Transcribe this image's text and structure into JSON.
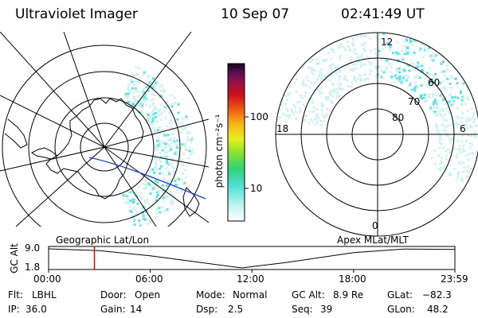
{
  "header": {
    "instrument": "Ultraviolet Imager",
    "date": "10 Sep 07",
    "time": "02:41:49 UT"
  },
  "colorbar": {
    "label": "photon cm⁻²s⁻¹",
    "ticks": [
      "100",
      "10"
    ]
  },
  "polar_plot": {
    "mlt_labels": {
      "top": "12",
      "left": "18",
      "right": "6",
      "bottom": "0"
    },
    "lat_labels": [
      "60",
      "70",
      "80"
    ]
  },
  "strip": {
    "left_caption": "Geographic Lat/Lon",
    "right_caption": "Apex MLat/MLT",
    "ylabel": "GC Alt",
    "y_ticks": [
      "9.0",
      "1.8"
    ],
    "x_ticks": [
      "00:00",
      "06:00",
      "12:00",
      "18:00",
      "23:59"
    ]
  },
  "info": {
    "row1": [
      {
        "label": "Flt:",
        "value": "LBHL"
      },
      {
        "label": "Door:",
        "value": "Open"
      },
      {
        "label": "Mode:",
        "value": "Normal"
      },
      {
        "label": "GC Alt:",
        "value": "8.9 Re"
      },
      {
        "label": "GLat:",
        "value": "−82.3"
      }
    ],
    "row2": [
      {
        "label": "IP:",
        "value": "36.0"
      },
      {
        "label": "Gain:",
        "value": "14"
      },
      {
        "label": "Dsp:",
        "value": "2.5"
      },
      {
        "label": "Seq:",
        "value": "39"
      },
      {
        "label": "GLon:",
        "value": "48.2"
      }
    ]
  },
  "chart_data": {
    "type": "line",
    "title": "Ultraviolet Imager",
    "xlabel": "",
    "ylabel": "GC Alt",
    "x_hours": [
      0,
      3,
      6,
      9,
      11.4,
      14,
      18,
      21,
      23.98
    ],
    "gc_alt": [
      9.0,
      8.3,
      6.4,
      3.8,
      1.8,
      3.8,
      7.6,
      8.9,
      8.8
    ],
    "ylim": [
      1.8,
      9.0
    ],
    "xlim": [
      0,
      23.98
    ],
    "current_time_hours": 2.7,
    "colors": {
      "marker": "#cc0000",
      "orbit": "#1a3fd0",
      "aurora": "#5fe3e3"
    }
  }
}
